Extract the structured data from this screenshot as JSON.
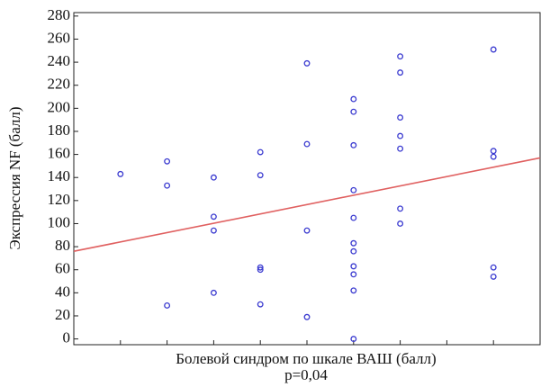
{
  "chart_data": {
    "type": "scatter",
    "x_label": "Болевой синдром по шкале ВАШ (балл)",
    "annotation": "p=0,04",
    "y_label": "Экспрессия NF (балл)",
    "xlim": [
      0,
      10
    ],
    "xticks": [
      1,
      2,
      3,
      4,
      5,
      6,
      7,
      8,
      9
    ],
    "ylim": [
      -5,
      283
    ],
    "yticks": [
      0,
      20,
      40,
      60,
      80,
      100,
      120,
      140,
      160,
      180,
      200,
      220,
      240,
      260,
      280
    ],
    "color": "#3b3bd0",
    "x": [
      1,
      2,
      2,
      2,
      3,
      3,
      3,
      3,
      4,
      4,
      4,
      4,
      4,
      5,
      5,
      5,
      5,
      6,
      6,
      6,
      6,
      6,
      6,
      6,
      6,
      6,
      6,
      6,
      7,
      7,
      7,
      7,
      7,
      7,
      7,
      9,
      9,
      9,
      9,
      9
    ],
    "values": [
      143,
      154,
      133,
      29,
      140,
      106,
      94,
      40,
      162,
      142,
      62,
      60,
      30,
      239,
      169,
      94,
      19,
      208,
      197,
      168,
      129,
      105,
      83,
      76,
      63,
      56,
      42,
      0,
      245,
      231,
      192,
      176,
      165,
      113,
      100,
      251,
      163,
      158,
      62,
      54
    ],
    "trendline": {
      "color": "#e06060",
      "x": [
        0,
        10
      ],
      "values": [
        76,
        157
      ]
    }
  }
}
